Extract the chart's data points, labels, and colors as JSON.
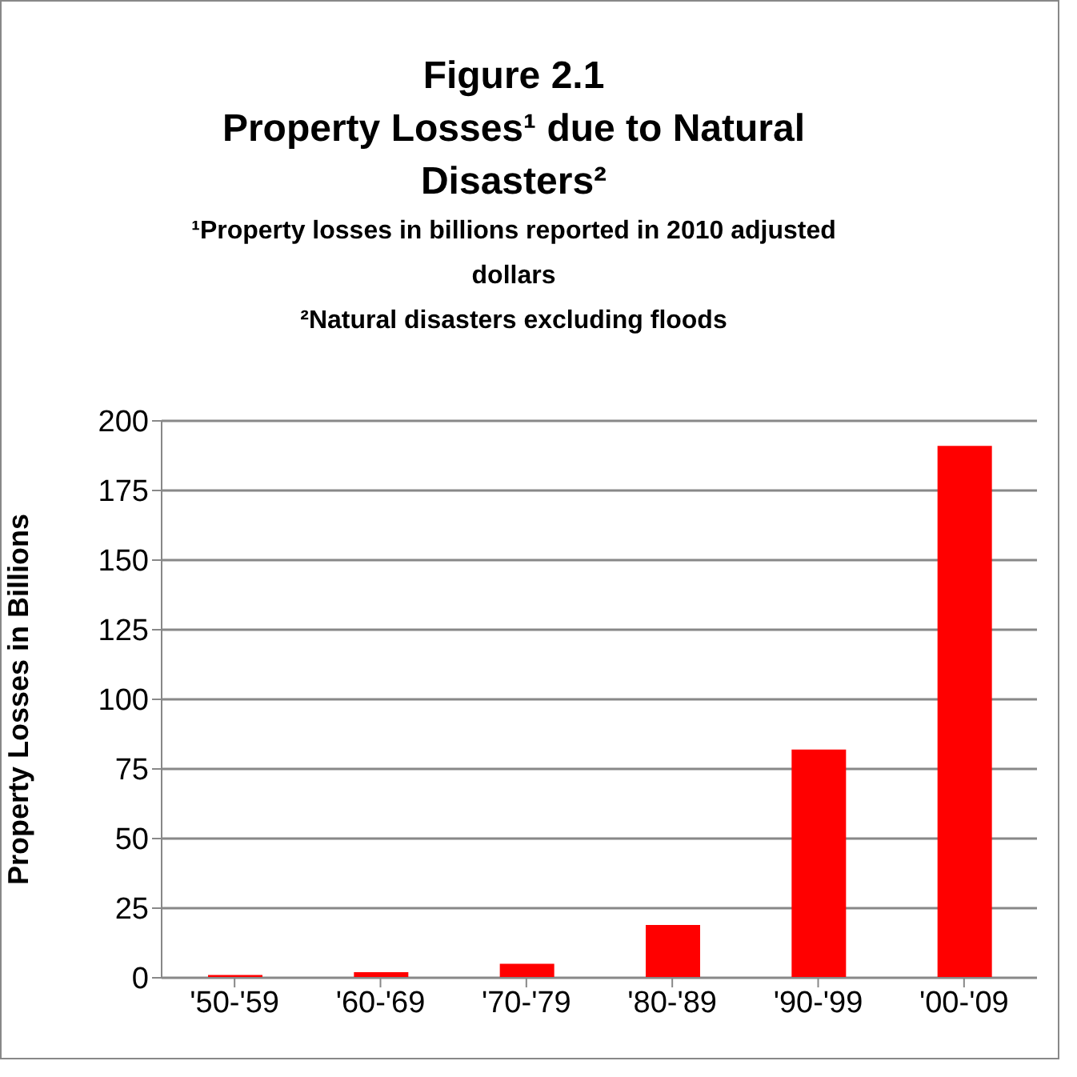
{
  "chart_data": {
    "type": "bar",
    "title": "Figure 2.1\nProperty Losses¹ due to Natural Disasters²",
    "subtitle": "¹Property losses in billions reported in 2010 adjusted dollars\n²Natural disasters excluding floods",
    "ylabel": "Property Losses in Billions",
    "categories": [
      "'50-'59",
      "'60-'69",
      "'70-'79",
      "'80-'89",
      "'90-'99",
      "'00-'09"
    ],
    "values": [
      1,
      2,
      5,
      19,
      82,
      191
    ],
    "color": "#ff0000",
    "ylim": [
      0,
      200
    ],
    "yticks": [
      0,
      25,
      50,
      75,
      100,
      125,
      150,
      175,
      200
    ],
    "grid": "y"
  }
}
